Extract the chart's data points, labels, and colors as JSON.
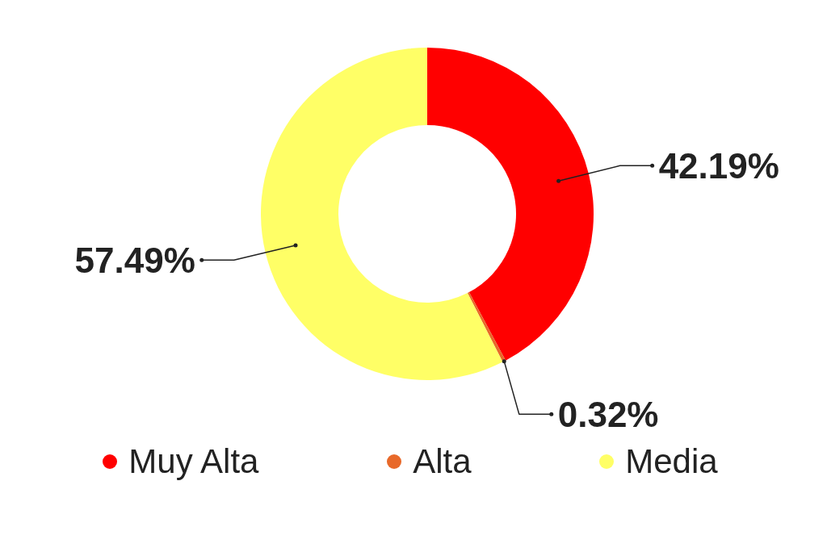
{
  "chart_data": {
    "type": "donut",
    "categories": [
      "Muy Alta",
      "Alta",
      "Media"
    ],
    "values": [
      42.19,
      0.32,
      57.49
    ],
    "colors": [
      "#ff0000",
      "#e8692a",
      "#ffff66"
    ],
    "value_labels": [
      "42.19%",
      "0.32%",
      "57.49%"
    ],
    "legend": "bottom"
  }
}
